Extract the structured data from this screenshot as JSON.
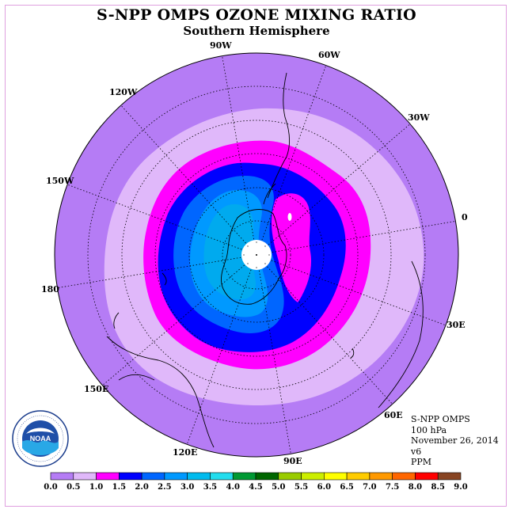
{
  "title": "S-NPP OMPS OZONE MIXING RATIO",
  "subtitle": "Southern Hemisphere",
  "info": {
    "instrument": "S-NPP OMPS",
    "level": "100 hPa",
    "date": "November 26, 2014",
    "version": "v6",
    "units": "PPM"
  },
  "logo": {
    "text": "NOAA",
    "ring_text": "NATIONAL OCEANIC AND ATMOSPHERIC ADMINISTRATION · U.S. DEPARTMENT OF COMMERCE"
  },
  "longitude_labels": {
    "lon_90w": "90W",
    "lon_60w": "60W",
    "lon_30w": "30W",
    "lon_0": "0",
    "lon_30e": "30E",
    "lon_60e": "60E",
    "lon_90e": "90E",
    "lon_120e": "120E",
    "lon_150e": "150E",
    "lon_180": "180",
    "lon_150w": "150W",
    "lon_120w": "120W"
  },
  "colorbar": {
    "ticks": [
      "0.0",
      "0.5",
      "1.0",
      "1.5",
      "2.0",
      "2.5",
      "3.0",
      "3.5",
      "4.0",
      "4.5",
      "5.0",
      "5.5",
      "6.0",
      "6.5",
      "7.0",
      "7.5",
      "8.0",
      "8.5",
      "9.0"
    ],
    "colors": [
      "#b57cf5",
      "#e0b8fa",
      "#ff00ff",
      "#0000ff",
      "#0066ff",
      "#0099ff",
      "#00bbee",
      "#22ddee",
      "#009933",
      "#006600",
      "#99cc00",
      "#ccee00",
      "#ffff00",
      "#ffcc00",
      "#ff9900",
      "#ff6600",
      "#ff0000",
      "#884422"
    ]
  },
  "contour_levels_ppm": [
    0.0,
    0.5,
    1.0,
    1.5,
    2.0,
    2.5,
    3.0
  ]
}
